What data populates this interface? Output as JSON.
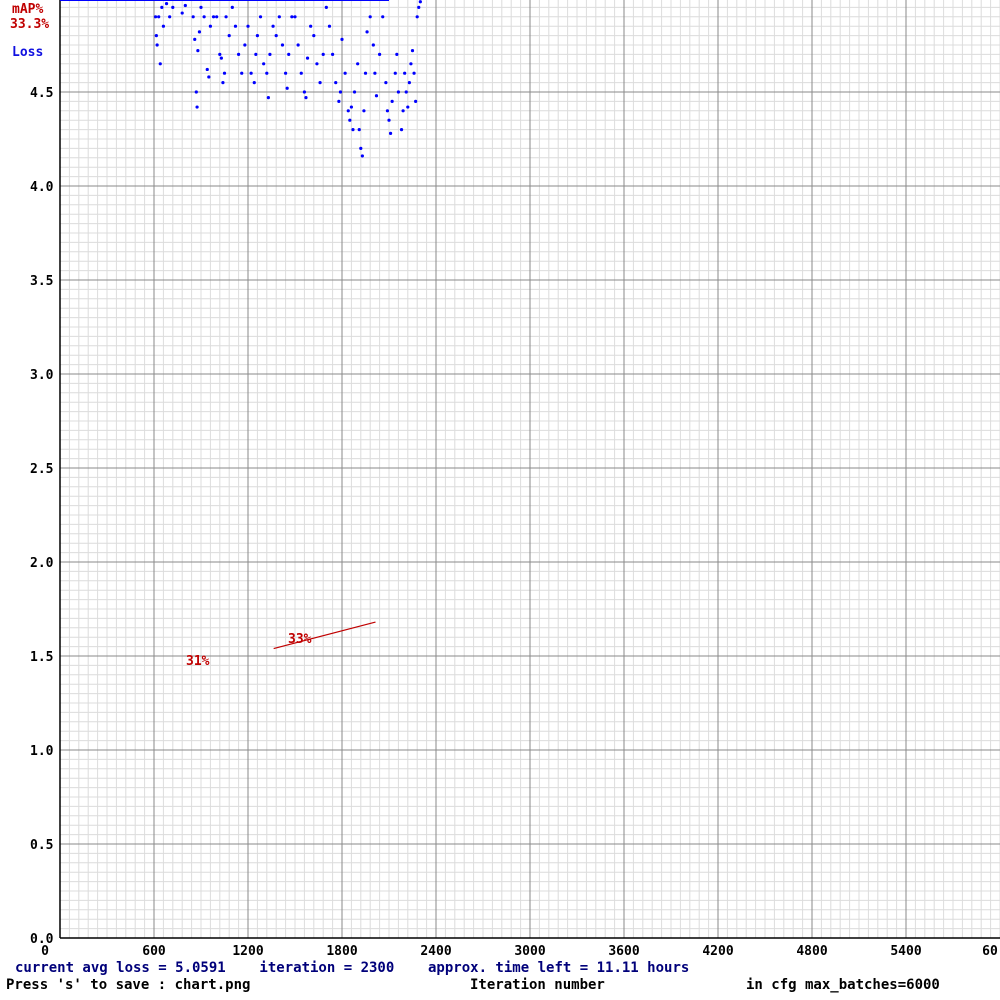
{
  "chart_data": {
    "type": "scatter",
    "legend": {
      "map_label": "mAP%",
      "map_value": "33.3%",
      "loss_label": "Loss"
    },
    "xlim": [
      0,
      6000
    ],
    "ylim": [
      0,
      5.0
    ],
    "x_ticks": [
      "0",
      "600",
      "1200",
      "1800",
      "2400",
      "3000",
      "3600",
      "4200",
      "4800",
      "5400",
      "60"
    ],
    "y_ticks": [
      "0.0",
      "0.5",
      "1.0",
      "1.5",
      "2.0",
      "2.5",
      "3.0",
      "3.5",
      "4.0",
      "4.5"
    ],
    "grid": true,
    "series": [
      {
        "name": "Loss",
        "color": "#0000ff",
        "avg_line": {
          "x_start": 0,
          "x_end": 2100,
          "y": 5.0
        },
        "points": [
          [
            600,
            5.0
          ],
          [
            610,
            4.9
          ],
          [
            615,
            4.8
          ],
          [
            620,
            4.75
          ],
          [
            630,
            4.9
          ],
          [
            640,
            4.65
          ],
          [
            650,
            4.95
          ],
          [
            660,
            4.85
          ],
          [
            680,
            4.97
          ],
          [
            700,
            4.9
          ],
          [
            720,
            4.95
          ],
          [
            750,
            5.0
          ],
          [
            780,
            4.92
          ],
          [
            800,
            4.96
          ],
          [
            850,
            4.9
          ],
          [
            860,
            4.78
          ],
          [
            870,
            4.5
          ],
          [
            875,
            4.42
          ],
          [
            880,
            4.72
          ],
          [
            890,
            4.82
          ],
          [
            900,
            4.95
          ],
          [
            920,
            4.9
          ],
          [
            940,
            4.62
          ],
          [
            950,
            4.58
          ],
          [
            960,
            4.85
          ],
          [
            980,
            4.9
          ],
          [
            1000,
            4.9
          ],
          [
            1020,
            4.7
          ],
          [
            1030,
            4.68
          ],
          [
            1040,
            4.55
          ],
          [
            1050,
            4.6
          ],
          [
            1060,
            4.9
          ],
          [
            1080,
            4.8
          ],
          [
            1100,
            4.95
          ],
          [
            1120,
            4.85
          ],
          [
            1140,
            4.7
          ],
          [
            1160,
            4.6
          ],
          [
            1180,
            4.75
          ],
          [
            1200,
            4.85
          ],
          [
            1220,
            4.6
          ],
          [
            1240,
            4.55
          ],
          [
            1250,
            4.7
          ],
          [
            1260,
            4.8
          ],
          [
            1280,
            4.9
          ],
          [
            1300,
            4.65
          ],
          [
            1320,
            4.6
          ],
          [
            1330,
            4.47
          ],
          [
            1340,
            4.7
          ],
          [
            1360,
            4.85
          ],
          [
            1380,
            4.8
          ],
          [
            1400,
            4.9
          ],
          [
            1420,
            4.75
          ],
          [
            1440,
            4.6
          ],
          [
            1450,
            4.52
          ],
          [
            1460,
            4.7
          ],
          [
            1480,
            4.9
          ],
          [
            1500,
            4.9
          ],
          [
            1520,
            4.75
          ],
          [
            1540,
            4.6
          ],
          [
            1560,
            4.5
          ],
          [
            1570,
            4.47
          ],
          [
            1580,
            4.68
          ],
          [
            1600,
            4.85
          ],
          [
            1620,
            4.8
          ],
          [
            1640,
            4.65
          ],
          [
            1660,
            4.55
          ],
          [
            1680,
            4.7
          ],
          [
            1700,
            4.95
          ],
          [
            1720,
            4.85
          ],
          [
            1740,
            4.7
          ],
          [
            1760,
            4.55
          ],
          [
            1780,
            4.45
          ],
          [
            1790,
            4.5
          ],
          [
            1800,
            4.78
          ],
          [
            1820,
            4.6
          ],
          [
            1840,
            4.4
          ],
          [
            1850,
            4.35
          ],
          [
            1860,
            4.42
          ],
          [
            1870,
            4.3
          ],
          [
            1880,
            4.5
          ],
          [
            1900,
            4.65
          ],
          [
            1910,
            4.3
          ],
          [
            1920,
            4.2
          ],
          [
            1930,
            4.16
          ],
          [
            1940,
            4.4
          ],
          [
            1950,
            4.6
          ],
          [
            1960,
            4.82
          ],
          [
            1980,
            4.9
          ],
          [
            2000,
            4.75
          ],
          [
            2010,
            4.6
          ],
          [
            2020,
            4.48
          ],
          [
            2040,
            4.7
          ],
          [
            2060,
            4.9
          ],
          [
            2080,
            4.55
          ],
          [
            2090,
            4.4
          ],
          [
            2100,
            4.35
          ],
          [
            2110,
            4.28
          ],
          [
            2120,
            4.45
          ],
          [
            2140,
            4.6
          ],
          [
            2150,
            4.7
          ],
          [
            2160,
            4.5
          ],
          [
            2180,
            4.3
          ],
          [
            2190,
            4.4
          ],
          [
            2200,
            4.6
          ],
          [
            2210,
            4.5
          ],
          [
            2220,
            4.42
          ],
          [
            2230,
            4.55
          ],
          [
            2240,
            4.65
          ],
          [
            2250,
            4.72
          ],
          [
            2260,
            4.6
          ],
          [
            2270,
            4.45
          ],
          [
            2280,
            4.9
          ],
          [
            2290,
            4.95
          ],
          [
            2300,
            4.98
          ]
        ]
      },
      {
        "name": "mAP%",
        "color": "#c00000",
        "points": [
          {
            "x": 1000,
            "y": 1.55,
            "label": "31%"
          },
          {
            "x": 1650,
            "y": 1.67,
            "label": "33%"
          }
        ]
      }
    ],
    "xlabel": "Iteration number"
  },
  "status": {
    "line1": "current avg loss = 5.0591    iteration = 2300    approx. time left = 11.11 hours",
    "line2_left": "Press 's' to save : chart.png",
    "line2_mid": "Iteration number",
    "line2_right": "in cfg max_batches=6000"
  }
}
